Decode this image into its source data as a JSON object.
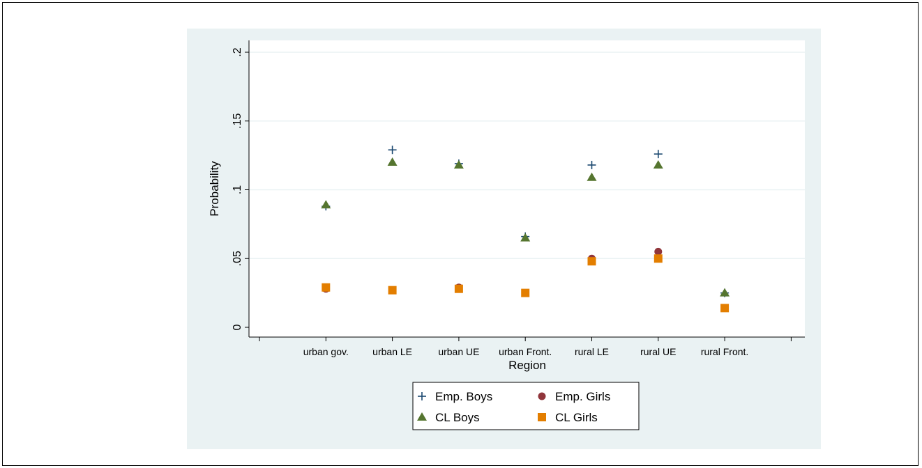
{
  "chart_data": {
    "type": "scatter",
    "title": "",
    "xlabel": "Region",
    "ylabel": "Probability",
    "categories": [
      "urban gov.",
      "urban LE",
      "urban UE",
      "urban Front.",
      "rural LE",
      "rural UE",
      "rural Front."
    ],
    "ylim": [
      0,
      0.2
    ],
    "yticks": [
      0,
      0.05,
      0.1,
      0.15,
      0.2
    ],
    "ytick_labels": [
      "0",
      ".05",
      ".1",
      ".15",
      ".2"
    ],
    "grid": true,
    "legend_position": "bottom",
    "series": [
      {
        "name": "Emp. Boys",
        "marker": "plus",
        "color": "#1a476f",
        "values": [
          0.088,
          0.129,
          0.119,
          0.066,
          0.118,
          0.126,
          0.025
        ]
      },
      {
        "name": "Emp. Girls",
        "marker": "circle",
        "color": "#90353b",
        "values": [
          0.028,
          0.027,
          0.029,
          0.025,
          0.05,
          0.055,
          0.014
        ]
      },
      {
        "name": "CL Boys",
        "marker": "triangle",
        "color": "#55752f",
        "values": [
          0.089,
          0.12,
          0.118,
          0.065,
          0.109,
          0.118,
          0.025
        ]
      },
      {
        "name": "CL Girls",
        "marker": "square",
        "color": "#e37e00",
        "values": [
          0.029,
          0.027,
          0.028,
          0.025,
          0.048,
          0.05,
          0.014
        ]
      }
    ]
  },
  "colors": {
    "outer_background": "#eaf2f3",
    "plot_background": "#ffffff",
    "grid": "#eaf2f3"
  }
}
